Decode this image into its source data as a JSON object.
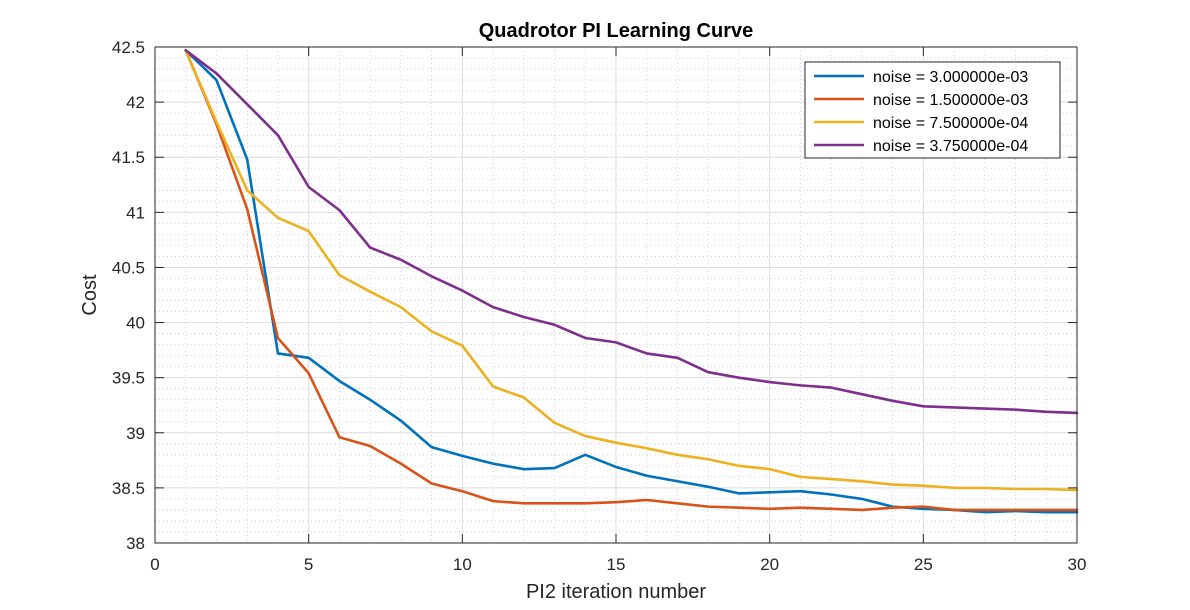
{
  "chart_data": {
    "type": "line",
    "title": "Quadrotor PI Learning Curve",
    "xlabel": "PI2 iteration number",
    "ylabel": "Cost",
    "xlim": [
      0,
      30
    ],
    "ylim": [
      38,
      42.5
    ],
    "xticks": [
      0,
      5,
      10,
      15,
      20,
      25,
      30
    ],
    "yticks": [
      38,
      38.5,
      39,
      39.5,
      40,
      40.5,
      41,
      41.5,
      42,
      42.5
    ],
    "xtick_labels": [
      "0",
      "5",
      "10",
      "15",
      "20",
      "25",
      "30"
    ],
    "ytick_labels": [
      "38",
      "38.5",
      "39",
      "39.5",
      "40",
      "40.5",
      "41",
      "41.5",
      "42",
      "42.5"
    ],
    "grid": true,
    "minor_grid": true,
    "legend_position": "top-right",
    "x": [
      1,
      2,
      3,
      4,
      5,
      6,
      7,
      8,
      9,
      10,
      11,
      12,
      13,
      14,
      15,
      16,
      17,
      18,
      19,
      20,
      21,
      22,
      23,
      24,
      25,
      26,
      27,
      28,
      29,
      30
    ],
    "series": [
      {
        "name": "noise = 3.000000e-03",
        "color": "#0072BD",
        "values": [
          42.47,
          42.2,
          41.48,
          39.72,
          39.68,
          39.47,
          39.3,
          39.11,
          38.87,
          38.79,
          38.72,
          38.67,
          38.68,
          38.8,
          38.69,
          38.61,
          38.56,
          38.51,
          38.45,
          38.46,
          38.47,
          38.44,
          38.4,
          38.33,
          38.31,
          38.3,
          38.28,
          38.29,
          38.28,
          38.28
        ]
      },
      {
        "name": "noise = 1.500000e-03",
        "color": "#D95319",
        "values": [
          42.47,
          41.8,
          41.03,
          39.86,
          39.54,
          38.96,
          38.88,
          38.72,
          38.54,
          38.47,
          38.38,
          38.36,
          38.36,
          38.36,
          38.37,
          38.39,
          38.36,
          38.33,
          38.32,
          38.31,
          38.32,
          38.31,
          38.3,
          38.32,
          38.33,
          38.3,
          38.3,
          38.3,
          38.3,
          38.3
        ]
      },
      {
        "name": "noise = 7.500000e-04",
        "color": "#EDB120",
        "values": [
          42.47,
          41.82,
          41.2,
          40.95,
          40.83,
          40.43,
          40.28,
          40.14,
          39.92,
          39.79,
          39.42,
          39.32,
          39.09,
          38.97,
          38.91,
          38.86,
          38.8,
          38.76,
          38.7,
          38.67,
          38.6,
          38.58,
          38.56,
          38.53,
          38.52,
          38.5,
          38.5,
          38.49,
          38.49,
          38.48
        ]
      },
      {
        "name": "noise = 3.750000e-04",
        "color": "#7E2F8E",
        "values": [
          42.47,
          42.26,
          41.98,
          41.7,
          41.23,
          41.02,
          40.68,
          40.57,
          40.42,
          40.29,
          40.14,
          40.05,
          39.98,
          39.86,
          39.82,
          39.72,
          39.68,
          39.55,
          39.5,
          39.46,
          39.43,
          39.41,
          39.35,
          39.29,
          39.24,
          39.23,
          39.22,
          39.21,
          39.19,
          39.18
        ]
      }
    ]
  }
}
